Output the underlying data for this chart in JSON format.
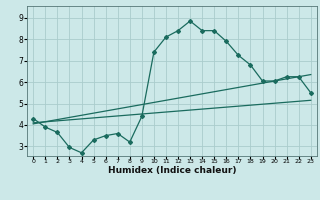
{
  "xlabel": "Humidex (Indice chaleur)",
  "background_color": "#cce8e8",
  "grid_color": "#aacccc",
  "line_color": "#1a6b5e",
  "x_ticks": [
    0,
    1,
    2,
    3,
    4,
    5,
    6,
    7,
    8,
    9,
    10,
    11,
    12,
    13,
    14,
    15,
    16,
    17,
    18,
    19,
    20,
    21,
    22,
    23
  ],
  "y_ticks": [
    3,
    4,
    5,
    6,
    7,
    8,
    9
  ],
  "xlim": [
    -0.5,
    23.5
  ],
  "ylim": [
    2.55,
    9.55
  ],
  "line1_x": [
    0,
    1,
    2,
    3,
    4,
    5,
    6,
    7,
    8,
    9,
    10,
    11,
    12,
    13,
    14,
    15,
    16,
    17,
    18,
    19,
    20,
    21,
    22,
    23
  ],
  "line1_y": [
    4.3,
    3.9,
    3.65,
    2.95,
    2.7,
    3.3,
    3.5,
    3.6,
    3.2,
    4.4,
    7.4,
    8.1,
    8.4,
    8.85,
    8.4,
    8.4,
    7.9,
    7.25,
    6.8,
    6.05,
    6.05,
    6.25,
    6.25,
    5.5
  ],
  "line2_x": [
    0,
    23
  ],
  "line2_y": [
    4.05,
    6.35
  ],
  "line3_x": [
    0,
    23
  ],
  "line3_y": [
    4.1,
    5.15
  ]
}
